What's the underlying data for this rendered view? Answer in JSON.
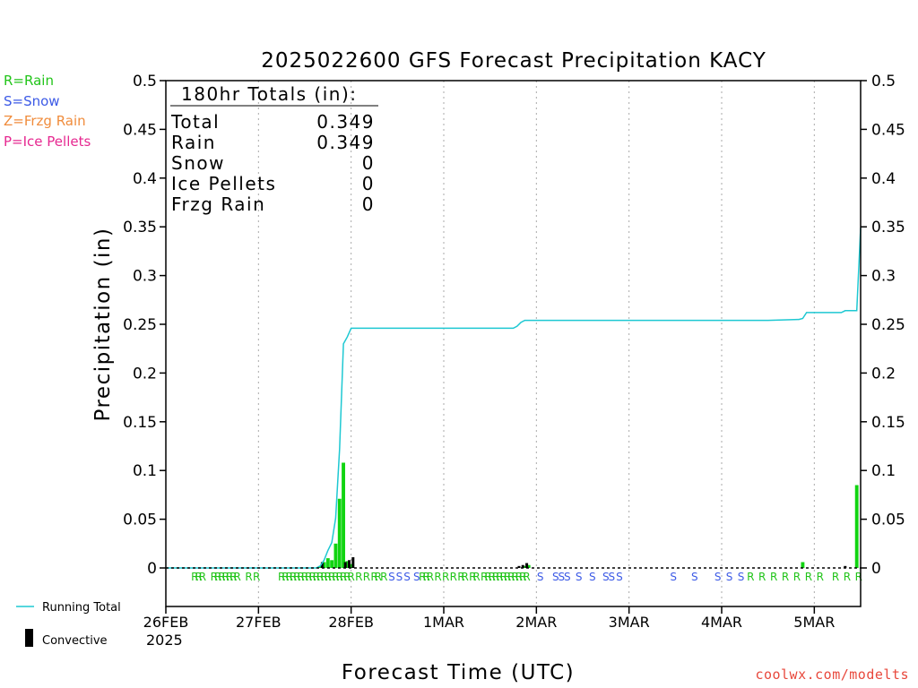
{
  "chart_data": {
    "type": "bar",
    "title": "2025022600 GFS Forecast Precipitation KACY",
    "xlabel": "Forecast Time (UTC)",
    "ylabel": "Precipitation (in)",
    "ylim": [
      0,
      0.5
    ],
    "xlim_hours": [
      0,
      180
    ],
    "y_ticks": [
      "0",
      "0.05",
      "0.1",
      "0.15",
      "0.2",
      "0.25",
      "0.3",
      "0.35",
      "0.4",
      "0.45",
      "0.5"
    ],
    "x_ticks": [
      {
        "label": "26FEB",
        "hour": 0
      },
      {
        "label": "27FEB",
        "hour": 24
      },
      {
        "label": "28FEB",
        "hour": 48
      },
      {
        "label": "1MAR",
        "hour": 72
      },
      {
        "label": "2MAR",
        "hour": 96
      },
      {
        "label": "3MAR",
        "hour": 120
      },
      {
        "label": "4MAR",
        "hour": 144
      },
      {
        "label": "5MAR",
        "hour": 168
      }
    ],
    "year_label": "2025",
    "grid": "vertical-dotted",
    "totals": {
      "header": "180hr Totals (in):",
      "rows": [
        {
          "label": "Total",
          "value": "0.349"
        },
        {
          "label": "Rain",
          "value": "0.349"
        },
        {
          "label": "Snow",
          "value": "0"
        },
        {
          "label": "Ice Pellets",
          "value": "0"
        },
        {
          "label": "Frzg Rain",
          "value": "0"
        }
      ]
    },
    "type_legend": [
      {
        "label": "R=Rain",
        "color": "#22c41a"
      },
      {
        "label": "S=Snow",
        "color": "#3c5ae6"
      },
      {
        "label": "Z=Frzg Rain",
        "color": "#f08c3c"
      },
      {
        "label": "P=Ice Pellets",
        "color": "#e62890"
      }
    ],
    "series_legend": [
      {
        "label": "Running Total",
        "color": "#1ec8d2"
      },
      {
        "label": "Convective",
        "color": "#000000"
      }
    ],
    "bars": [
      {
        "hour": 40.0,
        "value": 0.002
      },
      {
        "hour": 41.0,
        "value": 0.006
      },
      {
        "hour": 42.0,
        "value": 0.01
      },
      {
        "hour": 43.0,
        "value": 0.008
      },
      {
        "hour": 44.0,
        "value": 0.025
      },
      {
        "hour": 45.0,
        "value": 0.071
      },
      {
        "hour": 46.0,
        "value": 0.108
      },
      {
        "hour": 47.0,
        "value": 0.007
      },
      {
        "hour": 48.0,
        "value": 0.004
      },
      {
        "hour": 93.0,
        "value": 0.002
      },
      {
        "hour": 94.0,
        "value": 0.003
      },
      {
        "hour": 165.0,
        "value": 0.006
      },
      {
        "hour": 179.0,
        "value": 0.085
      }
    ],
    "convective": [
      {
        "hour": 40.5,
        "value": 0.006
      },
      {
        "hour": 46.5,
        "value": 0.006
      },
      {
        "hour": 47.5,
        "value": 0.008
      },
      {
        "hour": 48.5,
        "value": 0.011
      },
      {
        "hour": 91.5,
        "value": 0.002
      },
      {
        "hour": 92.5,
        "value": 0.003
      },
      {
        "hour": 93.5,
        "value": 0.005
      },
      {
        "hour": 176.0,
        "value": 0.002
      }
    ],
    "running_total": {
      "hours": [
        0,
        24,
        39,
        40,
        41,
        42,
        43,
        44,
        45,
        46,
        47,
        48,
        72,
        90,
        91,
        92,
        93,
        96,
        120,
        144,
        156,
        164,
        165,
        166,
        168,
        170,
        175,
        176,
        178,
        179,
        180
      ],
      "values": [
        0,
        0,
        0,
        0.002,
        0.008,
        0.018,
        0.026,
        0.051,
        0.122,
        0.23,
        0.237,
        0.246,
        0.246,
        0.246,
        0.248,
        0.252,
        0.254,
        0.254,
        0.254,
        0.254,
        0.254,
        0.255,
        0.256,
        0.262,
        0.262,
        0.262,
        0.262,
        0.264,
        0.264,
        0.264,
        0.349
      ]
    },
    "ptype_markers": [
      {
        "hour": 7.5,
        "type": "R"
      },
      {
        "hour": 8.5,
        "type": "R"
      },
      {
        "hour": 9.5,
        "type": "R"
      },
      {
        "hour": 12.5,
        "type": "R"
      },
      {
        "hour": 13.5,
        "type": "R"
      },
      {
        "hour": 14.5,
        "type": "R"
      },
      {
        "hour": 15.5,
        "type": "R"
      },
      {
        "hour": 16.5,
        "type": "R"
      },
      {
        "hour": 17.5,
        "type": "R"
      },
      {
        "hour": 18.5,
        "type": "R"
      },
      {
        "hour": 21.5,
        "type": "R"
      },
      {
        "hour": 23.5,
        "type": "R"
      },
      {
        "hour": 30.0,
        "type": "R"
      },
      {
        "hour": 31.0,
        "type": "R"
      },
      {
        "hour": 32.0,
        "type": "R"
      },
      {
        "hour": 33.0,
        "type": "R"
      },
      {
        "hour": 34.0,
        "type": "R"
      },
      {
        "hour": 35.0,
        "type": "R"
      },
      {
        "hour": 36.0,
        "type": "R"
      },
      {
        "hour": 37.0,
        "type": "R"
      },
      {
        "hour": 38.0,
        "type": "R"
      },
      {
        "hour": 39.0,
        "type": "R"
      },
      {
        "hour": 40.0,
        "type": "R"
      },
      {
        "hour": 41.0,
        "type": "R"
      },
      {
        "hour": 42.0,
        "type": "R"
      },
      {
        "hour": 43.0,
        "type": "R"
      },
      {
        "hour": 44.0,
        "type": "R"
      },
      {
        "hour": 45.0,
        "type": "R"
      },
      {
        "hour": 46.0,
        "type": "R"
      },
      {
        "hour": 47.0,
        "type": "R"
      },
      {
        "hour": 48.0,
        "type": "R"
      },
      {
        "hour": 50.0,
        "type": "R"
      },
      {
        "hour": 52.0,
        "type": "R"
      },
      {
        "hour": 54.0,
        "type": "R"
      },
      {
        "hour": 55.0,
        "type": "R"
      },
      {
        "hour": 56.5,
        "type": "R"
      },
      {
        "hour": 58.5,
        "type": "S"
      },
      {
        "hour": 60.5,
        "type": "S"
      },
      {
        "hour": 62.5,
        "type": "S"
      },
      {
        "hour": 65.0,
        "type": "S"
      },
      {
        "hour": 66.5,
        "type": "R"
      },
      {
        "hour": 67.5,
        "type": "R"
      },
      {
        "hour": 68.5,
        "type": "R"
      },
      {
        "hour": 70.5,
        "type": "R"
      },
      {
        "hour": 72.5,
        "type": "R"
      },
      {
        "hour": 74.5,
        "type": "R"
      },
      {
        "hour": 76.5,
        "type": "R"
      },
      {
        "hour": 77.5,
        "type": "R"
      },
      {
        "hour": 79.5,
        "type": "R"
      },
      {
        "hour": 80.5,
        "type": "R"
      },
      {
        "hour": 82.5,
        "type": "R"
      },
      {
        "hour": 83.5,
        "type": "R"
      },
      {
        "hour": 84.5,
        "type": "R"
      },
      {
        "hour": 85.5,
        "type": "R"
      },
      {
        "hour": 86.5,
        "type": "R"
      },
      {
        "hour": 87.5,
        "type": "R"
      },
      {
        "hour": 88.5,
        "type": "R"
      },
      {
        "hour": 89.5,
        "type": "R"
      },
      {
        "hour": 90.5,
        "type": "R"
      },
      {
        "hour": 91.5,
        "type": "R"
      },
      {
        "hour": 92.5,
        "type": "R"
      },
      {
        "hour": 93.5,
        "type": "R"
      },
      {
        "hour": 97.0,
        "type": "S"
      },
      {
        "hour": 101.0,
        "type": "S"
      },
      {
        "hour": 102.5,
        "type": "S"
      },
      {
        "hour": 104.0,
        "type": "S"
      },
      {
        "hour": 107.0,
        "type": "S"
      },
      {
        "hour": 110.5,
        "type": "S"
      },
      {
        "hour": 114.0,
        "type": "S"
      },
      {
        "hour": 115.5,
        "type": "S"
      },
      {
        "hour": 117.5,
        "type": "S"
      },
      {
        "hour": 131.5,
        "type": "S"
      },
      {
        "hour": 137.0,
        "type": "S"
      },
      {
        "hour": 143.0,
        "type": "S"
      },
      {
        "hour": 146.0,
        "type": "S"
      },
      {
        "hour": 149.0,
        "type": "S"
      },
      {
        "hour": 151.5,
        "type": "R"
      },
      {
        "hour": 154.5,
        "type": "R"
      },
      {
        "hour": 157.5,
        "type": "R"
      },
      {
        "hour": 160.5,
        "type": "R"
      },
      {
        "hour": 163.5,
        "type": "R"
      },
      {
        "hour": 166.5,
        "type": "R"
      },
      {
        "hour": 169.5,
        "type": "R"
      },
      {
        "hour": 173.5,
        "type": "R"
      },
      {
        "hour": 176.5,
        "type": "R"
      },
      {
        "hour": 179.5,
        "type": "R"
      }
    ],
    "credit": "coolwx.com/modelts"
  }
}
